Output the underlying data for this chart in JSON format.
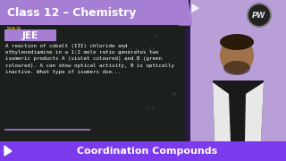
{
  "bg_color": "#1a1a2e",
  "chalkboard_color": "#1a1f1a",
  "purple_bg": "#b99fd8",
  "title_text": "Class 12 – Chemistry",
  "title_bg": "#a67fd4",
  "title_color": "#ffffff",
  "tag_text": "JEE",
  "tag_bg": "#a67fd4",
  "tag_color": "#ffffff",
  "body_text": "A reaction of cobalt (III) chloride and\nethylenediamine in a 1:2 mole ratio generates two\nisomeric products A (violet coloured) and B (green\ncoloured). A can show optical activity, B is optically\ninactive. What type of isomers doe...",
  "body_color": "#ffffff",
  "bottom_bar_bg": "#7c3aed",
  "bottom_text": "Coordination Compounds",
  "bottom_color": "#ffffff",
  "chevron_color": "#c8a832",
  "person_skin": "#a0724a",
  "person_shirt": "#1a1a1a",
  "person_jacket": "#e8e8e8",
  "right_strip_color": "#8855cc",
  "pw_ring_color": "#333333",
  "pw_text_color": "#cccccc"
}
